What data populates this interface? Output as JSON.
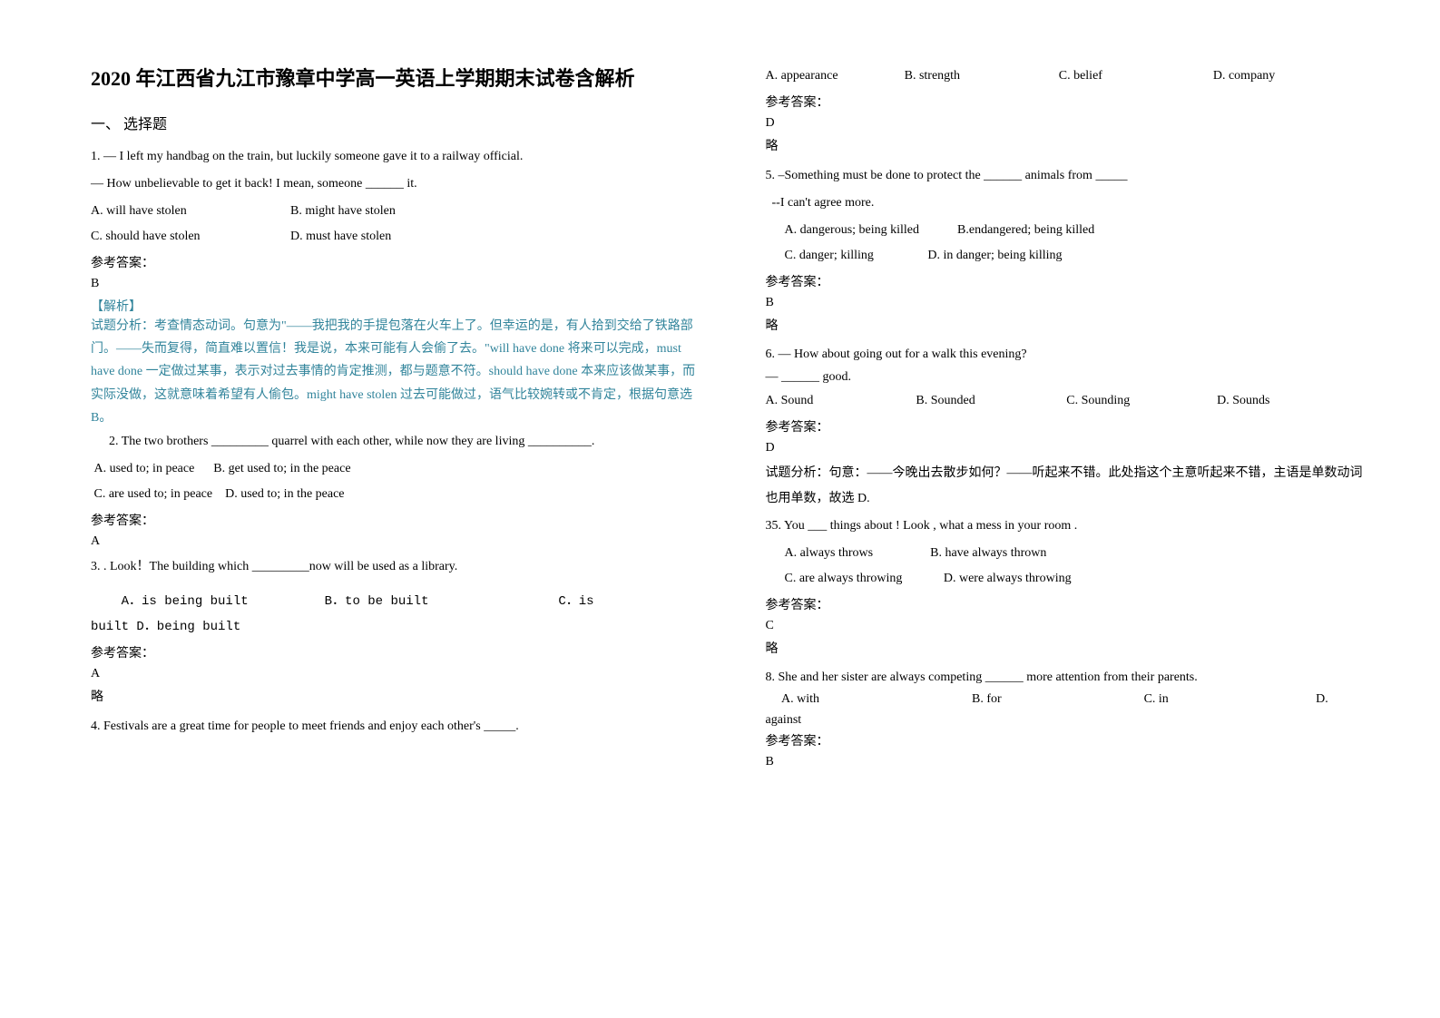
{
  "title": "2020 年江西省九江市豫章中学高一英语上学期期末试卷含解析",
  "section_title": "一、 选择题",
  "answer_label": "参考答案：",
  "brief_label": "略",
  "analysis_label": "【解析】",
  "q1": {
    "line1": "1. — I left my handbag on the train, but luckily someone gave it to a railway official.",
    "line2": "— How unbelievable to get it back! I mean, someone ______ it.",
    "optA": "A. will have stolen",
    "optB": "B. might have stolen",
    "optC": "C. should have stolen",
    "optD": "D. must have stolen",
    "answer": "B",
    "analysis_text": "试题分析：考查情态动词。句意为\"——我把我的手提包落在火车上了。但幸运的是，有人拾到交给了铁路部门。——失而复得，简直难以置信！我是说，本来可能有人会偷了去。\"will have done 将来可以完成，must have done 一定做过某事，表示对过去事情的肯定推测，都与题意不符。should have done 本来应该做某事，而实际没做，这就意味着希望有人偷包。might have stolen 过去可能做过，语气比较婉转或不肯定，根据句意选 B。"
  },
  "q2": {
    "line1": "2.  The two brothers _________ quarrel with each other, while now they are living __________.",
    "optA": "A. used to; in peace",
    "optB": "B. get used to; in the peace",
    "optC": "C. are used to; in peace",
    "optD": "D. used to; in the peace",
    "answer": "A"
  },
  "q3": {
    "line1": "3. . Look！The building which _________now will be used as a library.",
    "optA": "A．is being built",
    "optB": "B．to be built",
    "optC": "C．is",
    "optD_line": "built                  D．being built",
    "answer": "A"
  },
  "q4": {
    "line1": "4. Festivals are a great time for people to meet friends and enjoy each other's _____.",
    "optA": "A. appearance",
    "optB": "B. strength",
    "optC": "C. belief",
    "optD": "D. company",
    "answer": "D"
  },
  "q5": {
    "line1": "5. –Something must be done to protect the ______ animals from _____",
    "line2": "--I can't agree more.",
    "optA": "A. dangerous; being killed",
    "optB": "B.endangered; being killed",
    "optC": "C. danger; killing",
    "optD": "D. in danger; being killing",
    "answer": "B"
  },
  "q6": {
    "line1": "6. — How about going out for a walk this evening?",
    "line2": "   — ______ good.",
    "optA": "A. Sound",
    "optB": "B. Sounded",
    "optC": "C. Sounding",
    "optD": "D. Sounds",
    "answer": "D",
    "analysis": "试题分析：句意：——今晚出去散步如何？——听起来不错。此处指这个主意听起来不错，主语是单数动词也用单数，故选 D."
  },
  "q7": {
    "line1": "35. You ___ things about ! Look , what a mess in your room .",
    "optA": "A. always throws",
    "optB": "B. have always thrown",
    "optC": "C. are always throwing",
    "optD": "D. were always throwing",
    "answer": "C"
  },
  "q8": {
    "line1": "8. She and her sister are always competing ______ more attention from their parents.",
    "optA": "A. with",
    "optB": "B. for",
    "optC": "C. in",
    "optD": "D.",
    "optD_cont": "against",
    "answer": "B"
  }
}
